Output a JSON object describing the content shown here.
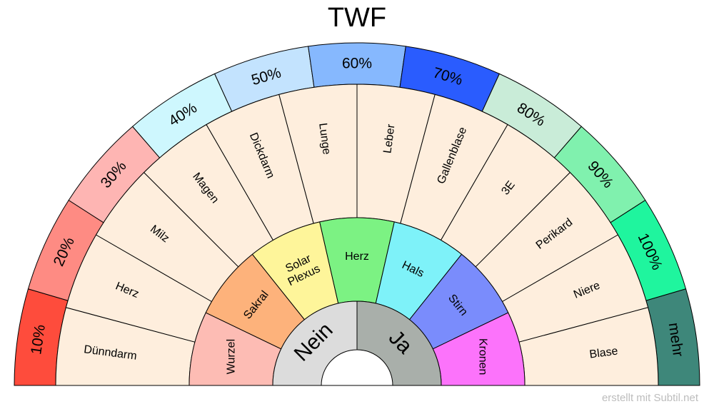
{
  "title": "TWF",
  "footer": "erstellt mit Subtil.net",
  "center": {
    "left": {
      "label": "Nein",
      "color": "#dcdcdc"
    },
    "right": {
      "label": "Ja",
      "color": "#a9afaa"
    }
  },
  "chakras": [
    {
      "label": "Wurzel",
      "color": "#fdbcb4"
    },
    {
      "label": "Sakral",
      "color": "#fdb27b"
    },
    {
      "label": "Solar\nPlexus",
      "color": "#fef59a"
    },
    {
      "label": "Herz",
      "color": "#7cf283"
    },
    {
      "label": "Hals",
      "color": "#7ef2f9"
    },
    {
      "label": "Stirn",
      "color": "#7a8cfc"
    },
    {
      "label": "Kronen",
      "color": "#fc73fb"
    }
  ],
  "organs": {
    "color": "#feeedd",
    "labels": [
      "Dünndarm",
      "Herz",
      "Milz",
      "Magen",
      "Dickdarm",
      "Lunge",
      "Leber",
      "Gallenblase",
      "3E",
      "Perikard",
      "Niere",
      "Blase"
    ]
  },
  "percentages": [
    {
      "label": "10%",
      "color": "#fe4c3c"
    },
    {
      "label": "20%",
      "color": "#fe8b83"
    },
    {
      "label": "30%",
      "color": "#feb5b3"
    },
    {
      "label": "40%",
      "color": "#cef7fe"
    },
    {
      "label": "50%",
      "color": "#c3e3fe"
    },
    {
      "label": "60%",
      "color": "#86b8fe"
    },
    {
      "label": "70%",
      "color": "#2a5cfe"
    },
    {
      "label": "80%",
      "color": "#c9ecd8"
    },
    {
      "label": "90%",
      "color": "#80f1ae"
    },
    {
      "label": "100%",
      "color": "#1ff59e"
    },
    {
      "label": "mehr",
      "color": "#3e877a"
    }
  ]
}
